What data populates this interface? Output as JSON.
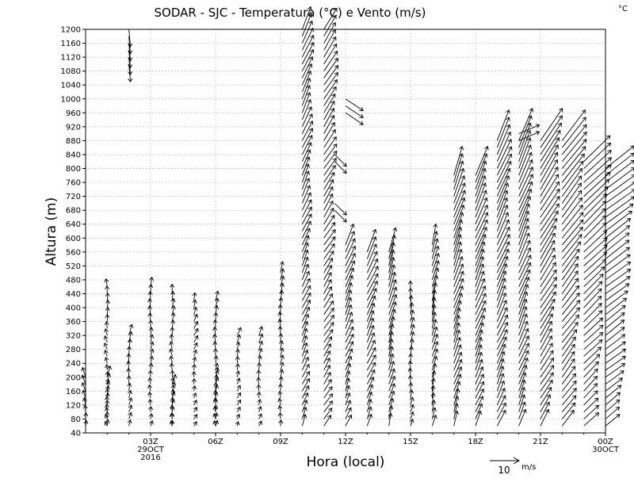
{
  "chart_data": {
    "type": "wind-profile",
    "title": "SODAR - SJC - Temperatura (°C) e Vento (m/s)",
    "corner_unit": "°C",
    "xlabel": "Hora (local)",
    "ylabel": "Altura (m)",
    "ylim": [
      40,
      1200
    ],
    "xlim_hours": [
      0,
      24
    ],
    "y_ticks": [
      40,
      80,
      120,
      160,
      200,
      240,
      280,
      320,
      360,
      400,
      440,
      480,
      520,
      560,
      600,
      640,
      680,
      720,
      760,
      800,
      840,
      880,
      920,
      960,
      1000,
      1040,
      1080,
      1120,
      1160,
      1200
    ],
    "x_ticks": [
      {
        "hour": 3,
        "lines": [
          "03Z",
          "29OCT",
          "2016"
        ]
      },
      {
        "hour": 6,
        "lines": [
          "06Z"
        ]
      },
      {
        "hour": 9,
        "lines": [
          "09Z"
        ]
      },
      {
        "hour": 12,
        "lines": [
          "12Z"
        ]
      },
      {
        "hour": 15,
        "lines": [
          "15Z"
        ]
      },
      {
        "hour": 18,
        "lines": [
          "18Z"
        ]
      },
      {
        "hour": 21,
        "lines": [
          "21Z"
        ]
      },
      {
        "hour": 24,
        "lines": [
          "00Z",
          "30OCT"
        ]
      }
    ],
    "grid": true,
    "wind_scale": {
      "value": "10",
      "unit": "m/s"
    },
    "profiles": [
      {
        "hour": 0.0,
        "top": 200,
        "u": -0.5,
        "v": 3.0
      },
      {
        "hour": 1.0,
        "top": 200,
        "u": 0.5,
        "v": 3.5
      },
      {
        "hour": 1.0,
        "top": 470,
        "u": -0.3,
        "v": 2.5
      },
      {
        "hour": 2.0,
        "top": 330,
        "u": 0.4,
        "v": 3.5
      },
      {
        "hour": 3.0,
        "top": 470,
        "u": 0.2,
        "v": 3.0
      },
      {
        "hour": 4.0,
        "top": 180,
        "u": 0.6,
        "v": 3.0
      },
      {
        "hour": 4.0,
        "top": 450,
        "u": 0.0,
        "v": 3.0
      },
      {
        "hour": 5.0,
        "top": 430,
        "u": 0.8,
        "v": 2.5
      },
      {
        "hour": 6.0,
        "top": 200,
        "u": 0.6,
        "v": 3.0
      },
      {
        "hour": 6.0,
        "top": 430,
        "u": 0.2,
        "v": 3.0
      },
      {
        "hour": 7.0,
        "top": 330,
        "u": 0.8,
        "v": 2.5
      },
      {
        "hour": 8.0,
        "top": 330,
        "u": 0.5,
        "v": 2.8
      },
      {
        "hour": 9.0,
        "top": 500,
        "u": 0.3,
        "v": 3.5
      },
      {
        "hour": 10.0,
        "top": 1200,
        "u": 3.0,
        "v": 7.0
      },
      {
        "hour": 11.0,
        "top": 1200,
        "u": 4.0,
        "v": 6.5
      },
      {
        "hour": 12.0,
        "top": 580,
        "u": 2.5,
        "v": 6.5
      },
      {
        "hour": 13.0,
        "top": 560,
        "u": 3.0,
        "v": 7.0
      },
      {
        "hour": 14.0,
        "top": 560,
        "u": 2.0,
        "v": 7.5
      },
      {
        "hour": 15.0,
        "top": 450,
        "u": 0.5,
        "v": 4.0
      },
      {
        "hour": 16.0,
        "top": 580,
        "u": 1.5,
        "v": 6.5
      },
      {
        "hour": 17.0,
        "top": 780,
        "u": 3.0,
        "v": 9.0
      },
      {
        "hour": 18.0,
        "top": 780,
        "u": 3.5,
        "v": 9.0
      },
      {
        "hour": 19.0,
        "top": 880,
        "u": 4.0,
        "v": 9.5
      },
      {
        "hour": 20.0,
        "top": 880,
        "u": 4.0,
        "v": 10.0
      },
      {
        "hour": 21.0,
        "top": 880,
        "u": 6.0,
        "v": 10.0
      },
      {
        "hour": 22.0,
        "top": 880,
        "u": 7.0,
        "v": 9.5
      },
      {
        "hour": 23.0,
        "top": 820,
        "u": 8.0,
        "v": 8.0
      },
      {
        "hour": 24.0,
        "top": 800,
        "u": 9.0,
        "v": 7.0
      }
    ],
    "upper_fragments": [
      {
        "hour": 2.0,
        "bottom": 1100,
        "top": 1200,
        "u": 0.5,
        "v": -6.0
      },
      {
        "hour": 12.0,
        "bottom": 960,
        "top": 1000,
        "u": 6.0,
        "v": -4.0
      },
      {
        "hour": 11.5,
        "bottom": 820,
        "top": 840,
        "u": 4.0,
        "v": -4.0
      },
      {
        "hour": 11.5,
        "bottom": 680,
        "top": 700,
        "u": 4.0,
        "v": -4.0
      },
      {
        "hour": 20.0,
        "bottom": 880,
        "top": 900,
        "u": 7.0,
        "v": 3.0
      }
    ]
  }
}
